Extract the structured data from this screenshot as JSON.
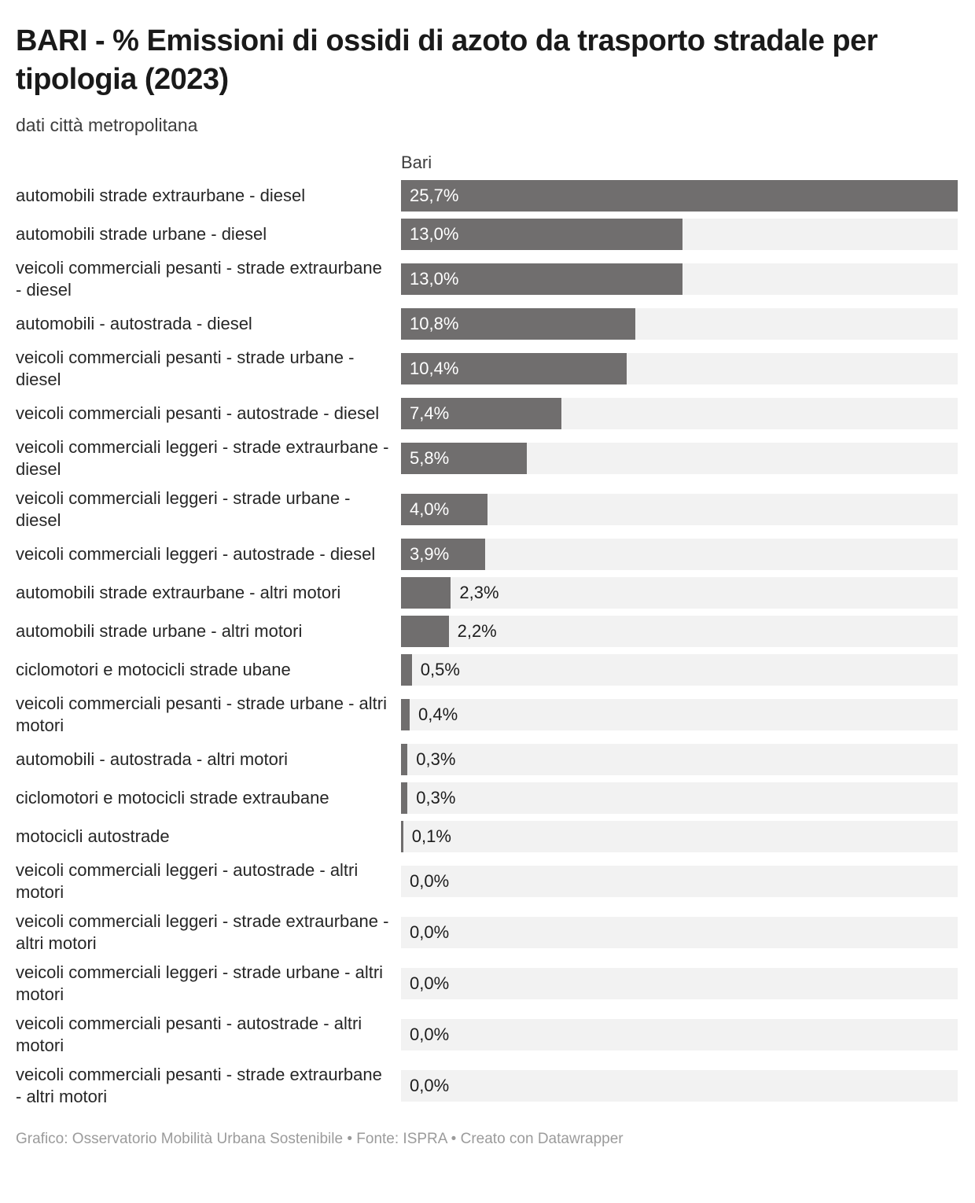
{
  "header": {
    "title": "BARI - % Emissioni di ossidi di azoto da trasporto stradale per tipologia (2023)",
    "subtitle": "dati città metropolitana"
  },
  "chart_data": {
    "type": "bar",
    "orientation": "horizontal",
    "column_header": "Bari",
    "value_unit": "%",
    "axis_max": 25.7,
    "bar_color": "#706e6e",
    "track_color": "#f2f2f2",
    "inside_label_threshold": 3.0,
    "rows": [
      {
        "label": "automobili strade extraurbane - diesel",
        "value": 25.7,
        "display": "25,7%"
      },
      {
        "label": "automobili strade urbane - diesel",
        "value": 13.0,
        "display": "13,0%"
      },
      {
        "label": "veicoli commerciali pesanti - strade extraurbane - diesel",
        "value": 13.0,
        "display": "13,0%"
      },
      {
        "label": "automobili - autostrada - diesel",
        "value": 10.8,
        "display": "10,8%"
      },
      {
        "label": "veicoli commerciali pesanti - strade urbane - diesel",
        "value": 10.4,
        "display": "10,4%"
      },
      {
        "label": "veicoli commerciali pesanti - autostrade - diesel",
        "value": 7.4,
        "display": "7,4%"
      },
      {
        "label": "veicoli commerciali leggeri - strade extraurbane - diesel",
        "value": 5.8,
        "display": "5,8%"
      },
      {
        "label": "veicoli commerciali leggeri - strade urbane - diesel",
        "value": 4.0,
        "display": "4,0%"
      },
      {
        "label": "veicoli commerciali leggeri - autostrade - diesel",
        "value": 3.9,
        "display": "3,9%"
      },
      {
        "label": "automobili strade extraurbane - altri motori",
        "value": 2.3,
        "display": "2,3%"
      },
      {
        "label": "automobili strade urbane - altri motori",
        "value": 2.2,
        "display": "2,2%"
      },
      {
        "label": "ciclomotori e motocicli strade ubane",
        "value": 0.5,
        "display": "0,5%"
      },
      {
        "label": "veicoli commerciali pesanti - strade urbane - altri motori",
        "value": 0.4,
        "display": "0,4%"
      },
      {
        "label": "automobili - autostrada - altri motori",
        "value": 0.3,
        "display": "0,3%"
      },
      {
        "label": "ciclomotori e motocicli strade extraubane",
        "value": 0.3,
        "display": "0,3%"
      },
      {
        "label": "motocicli autostrade",
        "value": 0.1,
        "display": "0,1%"
      },
      {
        "label": "veicoli commerciali leggeri - autostrade - altri motori",
        "value": 0.0,
        "display": "0,0%"
      },
      {
        "label": "veicoli commerciali leggeri - strade extraurbane - altri motori",
        "value": 0.0,
        "display": "0,0%"
      },
      {
        "label": "veicoli commerciali leggeri - strade urbane - altri motori",
        "value": 0.0,
        "display": "0,0%"
      },
      {
        "label": "veicoli commerciali pesanti - autostrade - altri motori",
        "value": 0.0,
        "display": "0,0%"
      },
      {
        "label": "veicoli commerciali pesanti - strade extraurbane - altri motori",
        "value": 0.0,
        "display": "0,0%"
      }
    ]
  },
  "footer": {
    "text": "Grafico: Osservatorio Mobilità Urbana Sostenibile • Fonte: ISPRA • Creato con Datawrapper"
  }
}
